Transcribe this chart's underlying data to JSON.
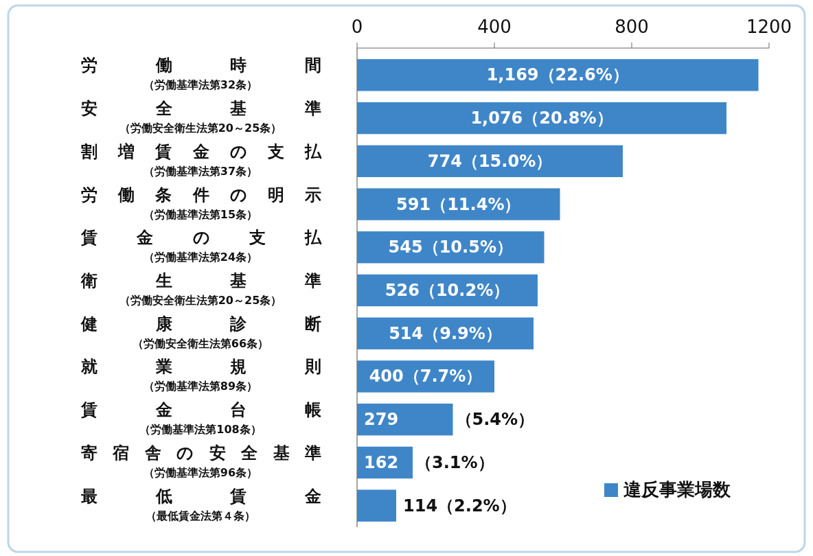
{
  "chart_data": {
    "type": "bar",
    "orientation": "horizontal",
    "categories": [
      "労働時間（労働基準法第32条）",
      "安全基準（労働安全衛生法第20～25条）",
      "割増賃金の支払（労働基準法第37条）",
      "労働条件の明示（労働基準法第15条）",
      "賃金の支払（労働基準法第24条）",
      "衛生基準（労働安全衛生法第20～25条）",
      "健康診断（労働安全衛生法第66条）",
      "就業規則（労働基準法第89条）",
      "賃金台帳（労働基準法第108条）",
      "寄宿舎の安全基準（労働基準法第96条）",
      "最低賃金（最低賃金法第４条）"
    ],
    "series": [
      {
        "name": "違反事業場数",
        "color": "#3f86c8",
        "values": [
          1169,
          1076,
          774,
          591,
          545,
          526,
          514,
          400,
          279,
          162,
          114
        ],
        "value_labels": [
          "1,169（22.6%）",
          "1,076（20.8%）",
          "774（15.0%）",
          "591（11.4%）",
          "545（10.5%）",
          "526（10.2%）",
          "514（9.9%）",
          "400（7.7%）",
          "279（5.4%）",
          "162（3.1%）",
          "114（2.2%）"
        ]
      }
    ],
    "xlim": [
      0,
      1200
    ],
    "xticks": [
      0,
      400,
      800,
      1200
    ],
    "grid": false,
    "legend": "bottom right"
  }
}
